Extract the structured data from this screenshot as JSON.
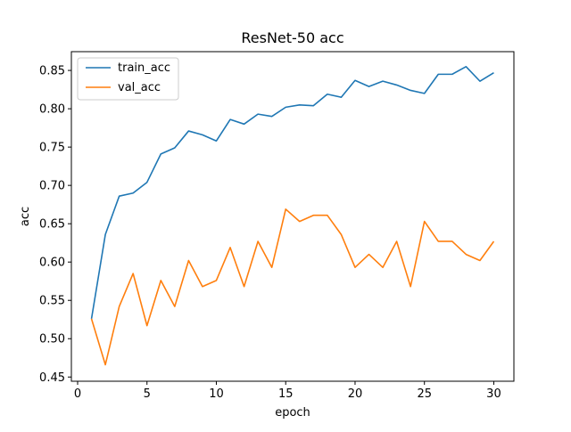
{
  "chart_data": {
    "type": "line",
    "title": "ResNet-50 acc",
    "xlabel": "epoch",
    "ylabel": "acc",
    "xlim": [
      -0.45,
      31.45
    ],
    "ylim": [
      0.4445,
      0.8745
    ],
    "xticks": [
      0,
      5,
      10,
      15,
      20,
      25,
      30
    ],
    "xtick_labels": [
      "0",
      "5",
      "10",
      "15",
      "20",
      "25",
      "30"
    ],
    "yticks": [
      0.45,
      0.5,
      0.55,
      0.6,
      0.65,
      0.7,
      0.75,
      0.8,
      0.85
    ],
    "ytick_labels": [
      "0.45",
      "0.50",
      "0.55",
      "0.60",
      "0.65",
      "0.70",
      "0.75",
      "0.80",
      "0.85"
    ],
    "grid": false,
    "legend": "upper-left",
    "x": [
      1,
      2,
      3,
      4,
      5,
      6,
      7,
      8,
      9,
      10,
      11,
      12,
      13,
      14,
      15,
      16,
      17,
      18,
      19,
      20,
      21,
      22,
      23,
      24,
      25,
      26,
      27,
      28,
      29,
      30
    ],
    "series": [
      {
        "name": "train_acc",
        "color": "#1f77b4",
        "values": [
          0.526,
          0.636,
          0.686,
          0.69,
          0.704,
          0.741,
          0.749,
          0.771,
          0.766,
          0.758,
          0.786,
          0.78,
          0.793,
          0.79,
          0.802,
          0.805,
          0.804,
          0.819,
          0.815,
          0.837,
          0.829,
          0.836,
          0.831,
          0.824,
          0.82,
          0.845,
          0.845,
          0.855,
          0.836,
          0.847
        ]
      },
      {
        "name": "val_acc",
        "color": "#ff7f0e",
        "values": [
          0.526,
          0.466,
          0.542,
          0.585,
          0.517,
          0.576,
          0.542,
          0.602,
          0.568,
          0.576,
          0.619,
          0.568,
          0.627,
          0.593,
          0.669,
          0.653,
          0.661,
          0.661,
          0.636,
          0.593,
          0.61,
          0.593,
          0.627,
          0.568,
          0.653,
          0.627,
          0.627,
          0.61,
          0.602,
          0.627
        ]
      }
    ]
  }
}
